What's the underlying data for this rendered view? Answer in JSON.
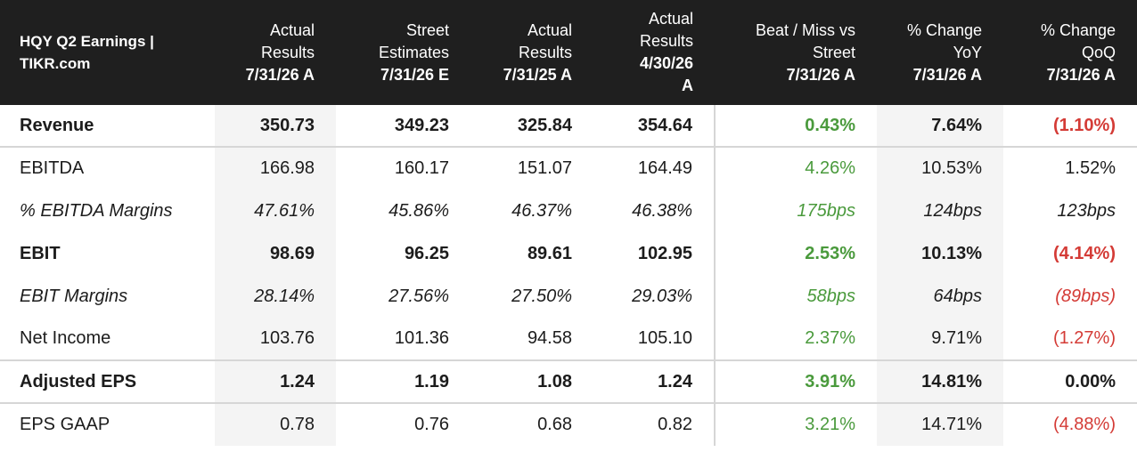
{
  "colors": {
    "header_bg": "#1f1f1f",
    "positive": "#4a9a3c",
    "negative": "#d43b36",
    "shade": "#f4f4f4"
  },
  "header": {
    "title_line1": "HQY Q2 Earnings |",
    "title_line2": "TIKR.com",
    "columns": [
      {
        "l1": "Actual",
        "l2": "Results",
        "l3": "7/31/26 A",
        "l4": ""
      },
      {
        "l1": "Street",
        "l2": "Estimates",
        "l3": "7/31/26 E",
        "l4": ""
      },
      {
        "l1": "Actual",
        "l2": "Results",
        "l3": "7/31/25 A",
        "l4": ""
      },
      {
        "l1": "Actual",
        "l2": "Results",
        "l3": "4/30/26",
        "l4": "A"
      },
      {
        "l1": "Beat / Miss vs",
        "l2": "Street",
        "l3": "7/31/26 A",
        "l4": ""
      },
      {
        "l1": "% Change",
        "l2": "YoY",
        "l3": "7/31/26 A",
        "l4": ""
      },
      {
        "l1": "% Change",
        "l2": "QoQ",
        "l3": "7/31/26 A",
        "l4": ""
      }
    ]
  },
  "rows": [
    {
      "label": "Revenue",
      "cells": [
        "350.73",
        "349.23",
        "325.84",
        "354.64",
        "0.43%",
        "7.64%",
        "(1.10%)"
      ]
    },
    {
      "label": "EBITDA",
      "cells": [
        "166.98",
        "160.17",
        "151.07",
        "164.49",
        "4.26%",
        "10.53%",
        "1.52%"
      ]
    },
    {
      "label": "% EBITDA Margins",
      "cells": [
        "47.61%",
        "45.86%",
        "46.37%",
        "46.38%",
        "175bps",
        "124bps",
        "123bps"
      ]
    },
    {
      "label": "EBIT",
      "cells": [
        "98.69",
        "96.25",
        "89.61",
        "102.95",
        "2.53%",
        "10.13%",
        "(4.14%)"
      ]
    },
    {
      "label": "EBIT Margins",
      "cells": [
        "28.14%",
        "27.56%",
        "27.50%",
        "29.03%",
        "58bps",
        "64bps",
        "(89bps)"
      ]
    },
    {
      "label": "Net Income",
      "cells": [
        "103.76",
        "101.36",
        "94.58",
        "105.10",
        "2.37%",
        "9.71%",
        "(1.27%)"
      ]
    },
    {
      "label": "Adjusted EPS",
      "cells": [
        "1.24",
        "1.19",
        "1.08",
        "1.24",
        "3.91%",
        "14.81%",
        "0.00%"
      ]
    },
    {
      "label": "EPS GAAP",
      "cells": [
        "0.78",
        "0.76",
        "0.68",
        "0.82",
        "3.21%",
        "14.71%",
        "(4.88%)"
      ]
    }
  ]
}
